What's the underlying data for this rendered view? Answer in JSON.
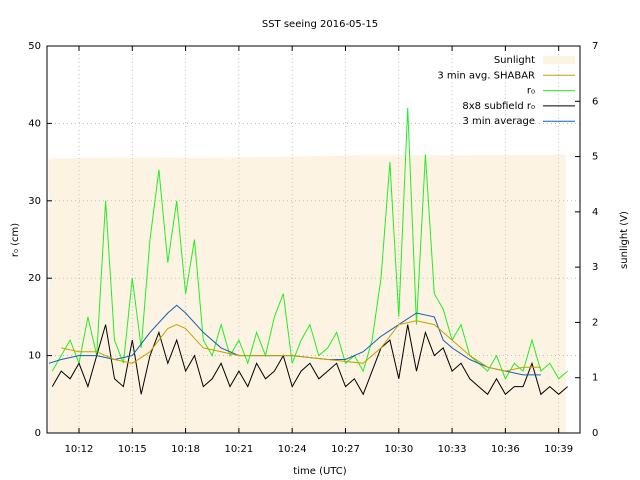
{
  "chart_data": {
    "type": "line",
    "title": "SST seeing 2016-05-15",
    "x_label": "time (UTC)",
    "y_label": "r₀ (cm)",
    "y2_label": "sunlight (V)",
    "xlim": [
      610.2,
      640.2
    ],
    "xticks": [
      {
        "value": 612,
        "label": "10:12"
      },
      {
        "value": 615,
        "label": "10:15"
      },
      {
        "value": 618,
        "label": "10:18"
      },
      {
        "value": 621,
        "label": "10:21"
      },
      {
        "value": 624,
        "label": "10:24"
      },
      {
        "value": 627,
        "label": "10:27"
      },
      {
        "value": 630,
        "label": "10:30"
      },
      {
        "value": 633,
        "label": "10:33"
      },
      {
        "value": 636,
        "label": "10:36"
      },
      {
        "value": 639,
        "label": "10:39"
      }
    ],
    "ylim": [
      0,
      50
    ],
    "yticks": [
      0,
      10,
      20,
      30,
      40,
      50
    ],
    "y2lim": [
      0,
      7
    ],
    "y2ticks": [
      0,
      1,
      2,
      3,
      4,
      5,
      6,
      7
    ],
    "grid": true,
    "legend": "top-right",
    "series": [
      {
        "name": "Sunlight",
        "color": "#fdf3e2",
        "axis": "y2",
        "kind": "area",
        "x": [
          610.3,
          620,
          628,
          639.4
        ],
        "values": [
          4.97,
          4.98,
          5.02,
          5.03
        ]
      },
      {
        "name": "3 min avg. SHABAR",
        "color": "#c8a000",
        "x": [
          611,
          612,
          613,
          614,
          615,
          616,
          617,
          617.5,
          618,
          619,
          620,
          621,
          622,
          624,
          626,
          628,
          629,
          630,
          631,
          632,
          633,
          634,
          635,
          636,
          637,
          638
        ],
        "values": [
          11,
          10.5,
          10.5,
          9.5,
          9,
          10.5,
          13.5,
          14,
          13.5,
          11,
          10.5,
          10,
          10,
          10,
          9.5,
          9,
          11,
          14,
          14.5,
          14,
          12,
          10,
          8.5,
          8,
          8.5,
          8.5
        ]
      },
      {
        "name": "r₀",
        "color": "#22ee22",
        "x": [
          610.5,
          611,
          611.5,
          612,
          612.5,
          613,
          613.5,
          614,
          614.5,
          615,
          615.5,
          616,
          616.5,
          617,
          617.5,
          618,
          618.5,
          619,
          619.5,
          620,
          620.5,
          621,
          621.5,
          622,
          622.5,
          623,
          623.5,
          624,
          624.5,
          625,
          625.5,
          626,
          626.5,
          627,
          627.5,
          628,
          628.5,
          629,
          629.5,
          630,
          630.5,
          631,
          631.5,
          632,
          632.5,
          633,
          633.5,
          634,
          634.5,
          635,
          635.5,
          636,
          636.5,
          637,
          637.5,
          638,
          638.5,
          639,
          639.5
        ],
        "values": [
          8,
          10,
          12,
          9,
          15,
          10,
          30,
          12,
          9,
          20,
          11,
          25,
          34,
          22,
          30,
          18,
          25,
          12,
          10,
          14,
          10,
          12,
          9,
          13,
          10,
          15,
          18,
          9,
          12,
          14,
          10,
          11,
          13,
          9,
          10,
          8,
          12,
          20,
          35,
          15,
          42,
          14,
          36,
          18,
          16,
          12,
          14,
          10,
          9,
          8,
          10,
          7,
          9,
          8,
          12,
          8,
          9,
          7,
          8
        ]
      },
      {
        "name": "8x8 subfield r₀",
        "color": "#000000",
        "x": [
          610.5,
          611,
          611.5,
          612,
          612.5,
          613,
          613.5,
          614,
          614.5,
          615,
          615.5,
          616,
          616.5,
          617,
          617.5,
          618,
          618.5,
          619,
          619.5,
          620,
          620.5,
          621,
          621.5,
          622,
          622.5,
          623,
          623.5,
          624,
          624.5,
          625,
          625.5,
          626,
          626.5,
          627,
          627.5,
          628,
          628.5,
          629,
          629.5,
          630,
          630.5,
          631,
          631.5,
          632,
          632.5,
          633,
          633.5,
          634,
          634.5,
          635,
          635.5,
          636,
          636.5,
          637,
          637.5,
          638,
          638.5,
          639,
          639.5
        ],
        "values": [
          6,
          8,
          7,
          9,
          6,
          10,
          14,
          7,
          6,
          12,
          5,
          10,
          13,
          9,
          12,
          8,
          10,
          6,
          7,
          9,
          6,
          8,
          6,
          9,
          7,
          8,
          10,
          6,
          8,
          9,
          7,
          8,
          9,
          6,
          7,
          5,
          8,
          11,
          12,
          7,
          14,
          8,
          13,
          10,
          11,
          8,
          9,
          7,
          6,
          5,
          7,
          5,
          6,
          6,
          9,
          5,
          6,
          5,
          6
        ]
      },
      {
        "name": "3 min average",
        "color": "#1060b0",
        "x": [
          610.3,
          611,
          612,
          613,
          614,
          615,
          616,
          617,
          617.5,
          618,
          619,
          620,
          621,
          622,
          624,
          626,
          627,
          628,
          629,
          630,
          631,
          632,
          632.5,
          633,
          634,
          635,
          636,
          637,
          638
        ],
        "values": [
          9,
          9.5,
          10,
          10,
          9.5,
          10,
          13,
          15.5,
          16.5,
          15.5,
          13,
          11,
          10,
          10,
          10,
          9.5,
          9.5,
          10.5,
          12.5,
          14,
          15.5,
          15,
          12,
          11,
          9.5,
          8.5,
          8,
          7.5,
          7.5
        ]
      }
    ]
  }
}
